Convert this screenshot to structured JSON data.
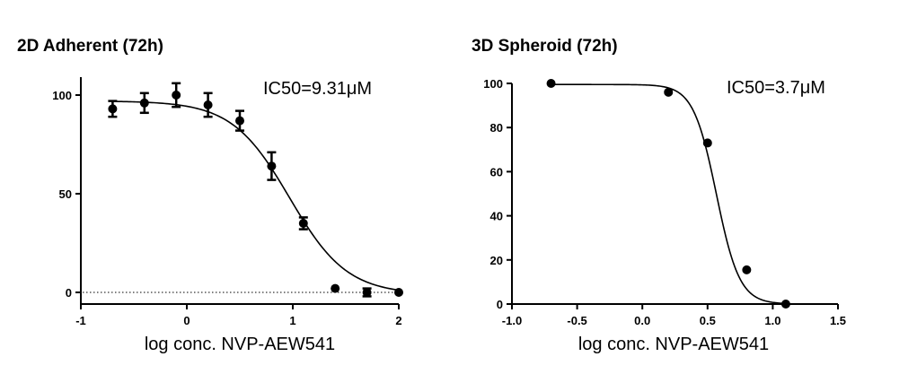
{
  "chart_data": [
    {
      "type": "scatter",
      "title": "2D Adherent (72h)",
      "annotation": "IC50=9.31μM",
      "xlabel": "log conc. NVP-AEW541",
      "ylabel": "",
      "xlim": [
        -1,
        2
      ],
      "ylim": [
        0,
        110
      ],
      "xticks": [
        -1,
        0,
        1,
        2
      ],
      "xtick_labels": [
        "-1",
        "0",
        "1",
        "2"
      ],
      "yticks": [
        0,
        50,
        100
      ],
      "ytick_labels": [
        "0",
        "50",
        "100"
      ],
      "reference_line": 0,
      "fit": {
        "model": "sigmoidal dose-response",
        "top": 97,
        "bottom": -1,
        "log_ic50": 0.969,
        "hill": 1.6
      },
      "points": [
        {
          "x": -0.7,
          "y": 93,
          "err": 4
        },
        {
          "x": -0.4,
          "y": 96,
          "err": 5
        },
        {
          "x": -0.1,
          "y": 100,
          "err": 6
        },
        {
          "x": 0.2,
          "y": 95,
          "err": 6
        },
        {
          "x": 0.5,
          "y": 87,
          "err": 5
        },
        {
          "x": 0.8,
          "y": 64,
          "err": 7
        },
        {
          "x": 1.1,
          "y": 35,
          "err": 3
        },
        {
          "x": 1.4,
          "y": 2,
          "err": 0
        },
        {
          "x": 1.7,
          "y": 0,
          "err": 2
        },
        {
          "x": 2.0,
          "y": 0,
          "err": 0
        }
      ]
    },
    {
      "type": "scatter",
      "title": "3D Spheroid (72h)",
      "annotation": "IC50=3.7μM",
      "xlabel": "log conc. NVP-AEW541",
      "ylabel": "",
      "xlim": [
        -1.0,
        1.5
      ],
      "ylim": [
        0,
        100
      ],
      "xticks": [
        -1.0,
        -0.5,
        0.0,
        0.5,
        1.0,
        1.5
      ],
      "xtick_labels": [
        "-1.0",
        "-0.5",
        "0.0",
        "0.5",
        "1.0",
        "1.5"
      ],
      "yticks": [
        0,
        20,
        40,
        60,
        80,
        100
      ],
      "ytick_labels": [
        "0",
        "20",
        "40",
        "60",
        "80",
        "100"
      ],
      "fit": {
        "model": "sigmoidal dose-response",
        "top": 99.5,
        "bottom": 0,
        "log_ic50": 0.568,
        "hill": 4.9
      },
      "points": [
        {
          "x": -0.7,
          "y": 100
        },
        {
          "x": 0.2,
          "y": 96
        },
        {
          "x": 0.5,
          "y": 73
        },
        {
          "x": 0.8,
          "y": 15.5
        },
        {
          "x": 1.1,
          "y": 0
        }
      ]
    }
  ]
}
